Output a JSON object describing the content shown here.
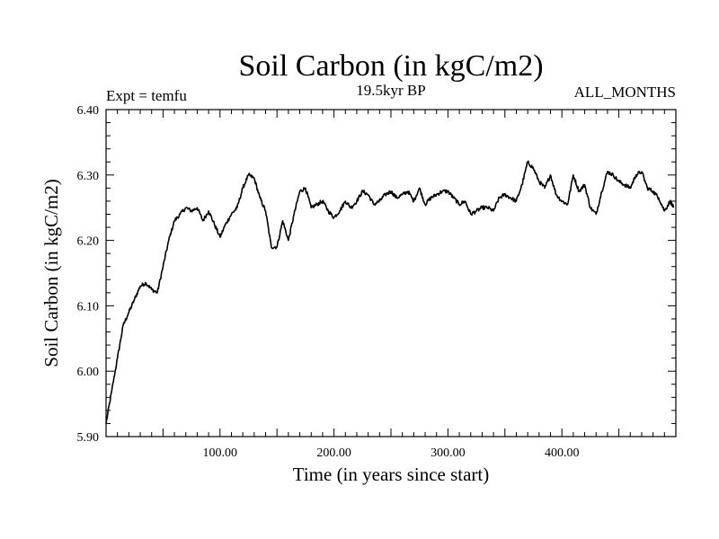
{
  "chart_data": {
    "type": "line",
    "title": "Soil Carbon (in kgC/m2)",
    "subtitle_left": "Expt = temfu",
    "subtitle_center": "19.5kyr BP",
    "subtitle_right": "ALL_MONTHS",
    "xlabel": "Time (in years since start)",
    "ylabel": "Soil Carbon (in kgC/m2)",
    "xlim": [
      0,
      500
    ],
    "ylim": [
      5.9,
      6.4
    ],
    "x_ticks": [
      "100.00",
      "200.00",
      "300.00",
      "400.00"
    ],
    "y_ticks": [
      "5.90",
      "6.00",
      "6.10",
      "6.20",
      "6.30",
      "6.40"
    ],
    "color": "#000000",
    "series": [
      {
        "name": "Soil Carbon",
        "x": [
          0,
          5,
          10,
          15,
          20,
          25,
          30,
          35,
          40,
          45,
          50,
          55,
          60,
          65,
          70,
          75,
          80,
          85,
          90,
          95,
          100,
          105,
          110,
          115,
          120,
          125,
          130,
          135,
          140,
          145,
          150,
          155,
          160,
          165,
          170,
          175,
          180,
          185,
          190,
          195,
          200,
          205,
          210,
          215,
          220,
          225,
          230,
          235,
          240,
          245,
          250,
          255,
          260,
          265,
          270,
          275,
          280,
          285,
          290,
          295,
          300,
          305,
          310,
          315,
          320,
          325,
          330,
          335,
          340,
          345,
          350,
          355,
          360,
          365,
          370,
          375,
          380,
          385,
          390,
          395,
          400,
          405,
          410,
          415,
          420,
          425,
          430,
          435,
          440,
          445,
          450,
          455,
          460,
          465,
          470,
          475,
          480,
          485,
          490,
          495,
          498
        ],
        "y": [
          5.92,
          5.97,
          6.02,
          6.07,
          6.09,
          6.11,
          6.13,
          6.135,
          6.125,
          6.12,
          6.16,
          6.2,
          6.23,
          6.24,
          6.25,
          6.245,
          6.25,
          6.23,
          6.245,
          6.225,
          6.205,
          6.225,
          6.24,
          6.25,
          6.28,
          6.3,
          6.295,
          6.265,
          6.245,
          6.19,
          6.19,
          6.23,
          6.2,
          6.24,
          6.275,
          6.28,
          6.25,
          6.255,
          6.26,
          6.245,
          6.235,
          6.245,
          6.26,
          6.25,
          6.26,
          6.275,
          6.27,
          6.255,
          6.26,
          6.27,
          6.275,
          6.265,
          6.27,
          6.275,
          6.26,
          6.28,
          6.255,
          6.265,
          6.27,
          6.275,
          6.275,
          6.265,
          6.255,
          6.26,
          6.24,
          6.245,
          6.25,
          6.25,
          6.245,
          6.265,
          6.27,
          6.265,
          6.26,
          6.285,
          6.32,
          6.31,
          6.29,
          6.28,
          6.3,
          6.27,
          6.26,
          6.255,
          6.3,
          6.275,
          6.285,
          6.25,
          6.24,
          6.275,
          6.305,
          6.3,
          6.29,
          6.285,
          6.28,
          6.3,
          6.305,
          6.28,
          6.275,
          6.265,
          6.245,
          6.26,
          6.25
        ]
      }
    ]
  }
}
